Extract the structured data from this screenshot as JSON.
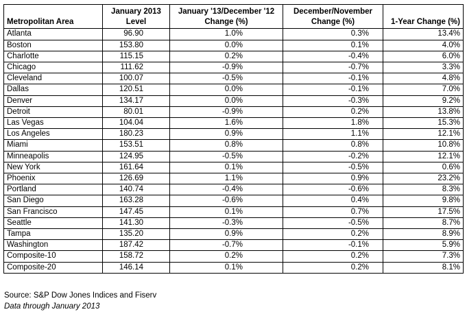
{
  "headers": {
    "metro": "Metropolitan Area",
    "level_line1": "January 2013",
    "level_line2": "Level",
    "mom_line1": "January '13/December '12",
    "mom_line2": "Change (%)",
    "prev_line1": "December/November",
    "prev_line2": "Change (%)",
    "yoy_line1": "",
    "yoy_line2": "1-Year Change (%)"
  },
  "rows": [
    {
      "area": "Atlanta",
      "level": "96.90",
      "mom": "1.0%",
      "prev": "0.3%",
      "yoy": "13.4%"
    },
    {
      "area": "Boston",
      "level": "153.80",
      "mom": "0.0%",
      "prev": "0.1%",
      "yoy": "4.0%"
    },
    {
      "area": "Charlotte",
      "level": "115.15",
      "mom": "0.2%",
      "prev": "-0.4%",
      "yoy": "6.0%"
    },
    {
      "area": "Chicago",
      "level": "111.62",
      "mom": "-0.9%",
      "prev": "-0.7%",
      "yoy": "3.3%"
    },
    {
      "area": "Cleveland",
      "level": "100.07",
      "mom": "-0.5%",
      "prev": "-0.1%",
      "yoy": "4.8%"
    },
    {
      "area": "Dallas",
      "level": "120.51",
      "mom": "0.0%",
      "prev": "-0.1%",
      "yoy": "7.0%"
    },
    {
      "area": "Denver",
      "level": "134.17",
      "mom": "0.0%",
      "prev": "-0.3%",
      "yoy": "9.2%"
    },
    {
      "area": "Detroit",
      "level": "80.01",
      "mom": "-0.9%",
      "prev": "0.2%",
      "yoy": "13.8%"
    },
    {
      "area": "Las Vegas",
      "level": "104.04",
      "mom": "1.6%",
      "prev": "1.8%",
      "yoy": "15.3%"
    },
    {
      "area": "Los Angeles",
      "level": "180.23",
      "mom": "0.9%",
      "prev": "1.1%",
      "yoy": "12.1%"
    },
    {
      "area": "Miami",
      "level": "153.51",
      "mom": "0.8%",
      "prev": "0.8%",
      "yoy": "10.8%"
    },
    {
      "area": "Minneapolis",
      "level": "124.95",
      "mom": "-0.5%",
      "prev": "-0.2%",
      "yoy": "12.1%"
    },
    {
      "area": "New York",
      "level": "161.64",
      "mom": "0.1%",
      "prev": "-0.5%",
      "yoy": "0.6%"
    },
    {
      "area": "Phoenix",
      "level": "126.69",
      "mom": "1.1%",
      "prev": "0.9%",
      "yoy": "23.2%"
    },
    {
      "area": "Portland",
      "level": "140.74",
      "mom": "-0.4%",
      "prev": "-0.6%",
      "yoy": "8.3%"
    },
    {
      "area": "San Diego",
      "level": "163.28",
      "mom": "-0.6%",
      "prev": "0.4%",
      "yoy": "9.8%"
    },
    {
      "area": "San Francisco",
      "level": "147.45",
      "mom": "0.1%",
      "prev": "0.7%",
      "yoy": "17.5%"
    },
    {
      "area": "Seattle",
      "level": "141.30",
      "mom": "-0.3%",
      "prev": "-0.5%",
      "yoy": "8.7%"
    },
    {
      "area": "Tampa",
      "level": "135.20",
      "mom": "0.9%",
      "prev": "0.2%",
      "yoy": "8.9%"
    },
    {
      "area": "Washington",
      "level": "187.42",
      "mom": "-0.7%",
      "prev": "-0.1%",
      "yoy": "5.9%"
    },
    {
      "area": "Composite-10",
      "level": "158.72",
      "mom": "0.2%",
      "prev": "0.2%",
      "yoy": "7.3%"
    },
    {
      "area": "Composite-20",
      "level": "146.14",
      "mom": "0.1%",
      "prev": "0.2%",
      "yoy": "8.1%"
    }
  ],
  "source": "Source: S&P Dow  Jones Indices and Fiserv",
  "note": "Data through January 2013"
}
